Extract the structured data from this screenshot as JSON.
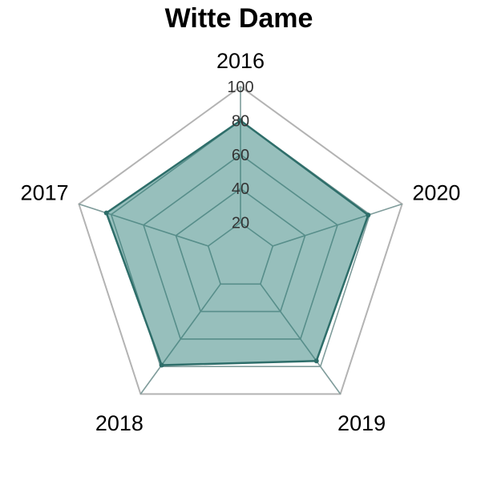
{
  "chart_data": {
    "type": "radar",
    "title": "Witte Dame",
    "categories": [
      "2016",
      "2017",
      "2018",
      "2019",
      "2020"
    ],
    "series": [
      {
        "values": [
          80,
          83,
          79,
          76,
          79
        ]
      }
    ],
    "rlim": [
      0,
      100
    ],
    "ticks": [
      "20",
      "40",
      "60",
      "80",
      "100"
    ],
    "grid": true,
    "colors": {
      "fill": "#2f7f7a",
      "line": "#2e6e6a",
      "outer_grid": "#b3b3b3",
      "inner_grid": "#7f9c9b"
    }
  }
}
